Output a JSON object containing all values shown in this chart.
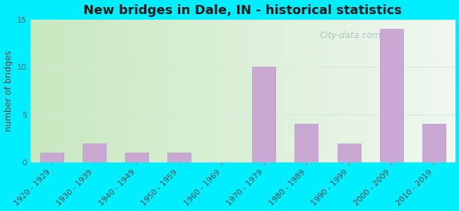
{
  "title": "New bridges in Dale, IN - historical statistics",
  "categories": [
    "1920 - 1929",
    "1930 - 1939",
    "1940 - 1949",
    "1950 - 1959",
    "1960 - 1969",
    "1970 - 1979",
    "1980 - 1989",
    "1990 - 1999",
    "2000 - 2009",
    "2010 - 2019"
  ],
  "values": [
    1,
    2,
    1,
    1,
    0,
    10,
    4,
    2,
    14,
    4
  ],
  "bar_color": "#c9a8d4",
  "bar_edge_color": "#b898c8",
  "ylabel": "number of bridges",
  "ylim": [
    0,
    15
  ],
  "yticks": [
    0,
    5,
    10,
    15
  ],
  "background_outer": "#00eeff",
  "plot_bg_left": "#c8e8c0",
  "plot_bg_right": "#f0f8f0",
  "title_fontsize": 13,
  "axis_label_fontsize": 9,
  "tick_fontsize": 8,
  "watermark": "City-data.com",
  "watermark_color": "#a8c0c0",
  "grid_color": "#d8e8d8",
  "title_color": "#1a1a1a"
}
